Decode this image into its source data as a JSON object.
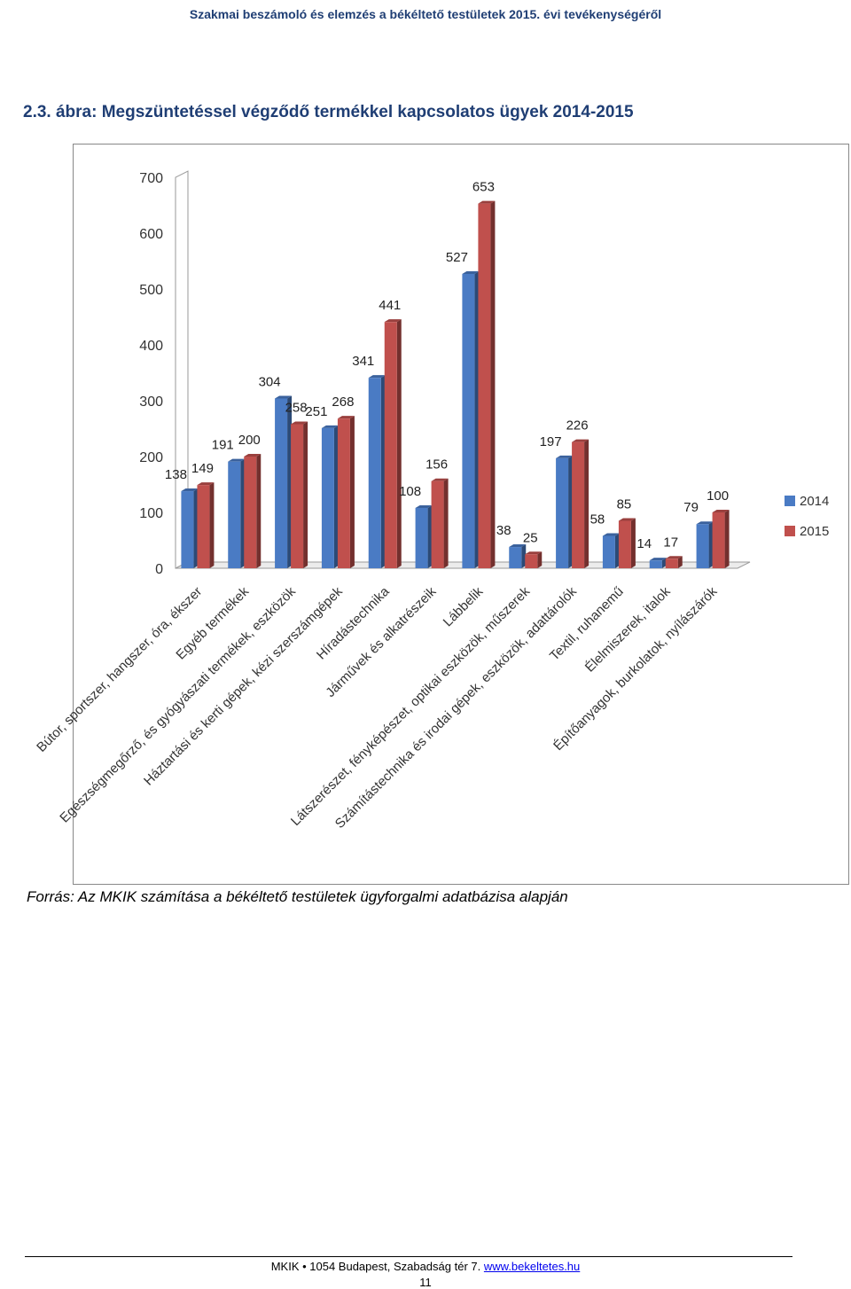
{
  "header": {
    "text": "Szakmai beszámoló és elemzés a békéltető testületek 2015. évi tevékenységéről"
  },
  "figure": {
    "caption": "2.3. ábra: Megszüntetéssel végződő termékkel kapcsolatos ügyek 2014-2015"
  },
  "chart_data": {
    "type": "bar",
    "title": "",
    "xlabel": "",
    "ylabel": "",
    "ylim": [
      0,
      700
    ],
    "yticks": [
      0,
      100,
      200,
      300,
      400,
      500,
      600,
      700
    ],
    "grid": false,
    "legend_position": "right",
    "categories": [
      "Bútor, sportszer, hangszer, óra, ékszer",
      "Egyéb termékek",
      "Egészségmegőrző, és gyógyászati termékek, eszközök",
      "Háztartási és kerti gépek, kézi szerszámgépek",
      "Híradástechnika",
      "Járművek és alkatrészeik",
      "Lábbelik",
      "Látszerészet, fényképészet, optikai eszközök, műszerek",
      "Számítástechnika és irodai gépek, eszközök, adattárolók",
      "Textil, ruhanemű",
      "Élelmiszerek, italok",
      "Építőanyagok, burkolatok, nyílászárók"
    ],
    "series": [
      {
        "name": "2014",
        "color": "#4a7bc4",
        "values": [
          138,
          191,
          304,
          251,
          341,
          108,
          527,
          38,
          197,
          58,
          14,
          79
        ]
      },
      {
        "name": "2015",
        "color": "#c0504d",
        "values": [
          149,
          200,
          258,
          268,
          441,
          156,
          653,
          25,
          226,
          85,
          17,
          100
        ]
      }
    ]
  },
  "source": {
    "text": "Forrás: Az MKIK számítása a békéltető testületek ügyforgalmi adatbázisa alapján"
  },
  "footer": {
    "text": "MKIK • 1054 Budapest, Szabadság tér 7.",
    "link": "www.bekeltetes.hu",
    "page": "11"
  }
}
